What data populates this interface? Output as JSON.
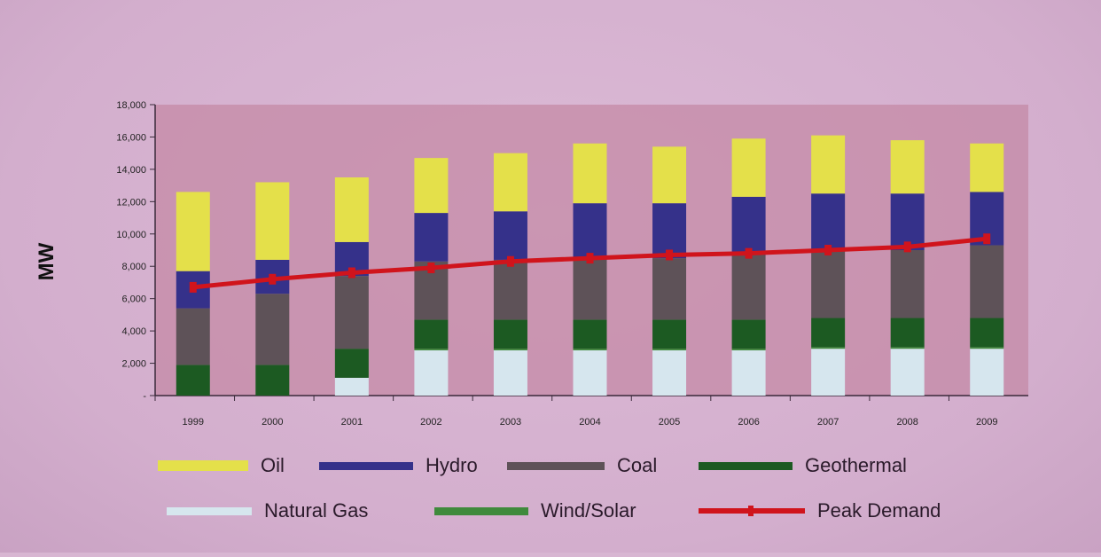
{
  "chart_data": {
    "type": "bar",
    "stacked": true,
    "ylabel": "MW",
    "xlabel": "",
    "ylim": [
      0,
      18000
    ],
    "y_ticks": [
      0,
      2000,
      4000,
      6000,
      8000,
      10000,
      12000,
      14000,
      16000,
      18000
    ],
    "y_tick_labels": [
      "-",
      "2,000",
      "4,000",
      "6,000",
      "8,000",
      "10,000",
      "12,000",
      "14,000",
      "16,000",
      "18,000"
    ],
    "categories": [
      "1999",
      "2000",
      "2001",
      "2002",
      "2003",
      "2004",
      "2005",
      "2006",
      "2007",
      "2008",
      "2009"
    ],
    "series": [
      {
        "name": "Natural Gas",
        "color": "#d6e6ee",
        "values": [
          0,
          0,
          1100,
          2800,
          2800,
          2800,
          2800,
          2800,
          2900,
          2900,
          2900
        ]
      },
      {
        "name": "Wind/Solar",
        "color": "#3f8a3c",
        "values": [
          0,
          0,
          0,
          100,
          100,
          100,
          100,
          100,
          100,
          100,
          100
        ]
      },
      {
        "name": "Geothermal",
        "color": "#1c5a22",
        "values": [
          1900,
          1900,
          1800,
          1800,
          1800,
          1800,
          1800,
          1800,
          1800,
          1800,
          1800
        ]
      },
      {
        "name": "Coal",
        "color": "#5e5258",
        "values": [
          3500,
          4400,
          4500,
          3600,
          3700,
          3700,
          3800,
          4000,
          4200,
          4200,
          4500
        ]
      },
      {
        "name": "Hydro",
        "color": "#35318a",
        "values": [
          2300,
          2100,
          2100,
          3000,
          3000,
          3500,
          3400,
          3600,
          3500,
          3500,
          3300
        ]
      },
      {
        "name": "Oil",
        "color": "#e4e04a",
        "values": [
          4900,
          4800,
          4000,
          3400,
          3600,
          3700,
          3500,
          3600,
          3600,
          3300,
          3000
        ]
      }
    ],
    "line_series": {
      "name": "Peak Demand",
      "color": "#d0141c",
      "values": [
        6700,
        7200,
        7600,
        7900,
        8300,
        8500,
        8700,
        8800,
        9000,
        9200,
        9700
      ]
    },
    "legend_placement": "bottom",
    "grid": false
  },
  "legend": {
    "items": [
      {
        "label": "Oil",
        "color": "#e4e04a"
      },
      {
        "label": "Hydro",
        "color": "#35318a"
      },
      {
        "label": "Coal",
        "color": "#5e5258"
      },
      {
        "label": "Geothermal",
        "color": "#1c5a22"
      },
      {
        "label": "Natural Gas",
        "color": "#d6e6ee"
      },
      {
        "label": "Wind/Solar",
        "color": "#3f8a3c"
      },
      {
        "label": "Peak Demand",
        "color": "#d0141c"
      }
    ]
  }
}
